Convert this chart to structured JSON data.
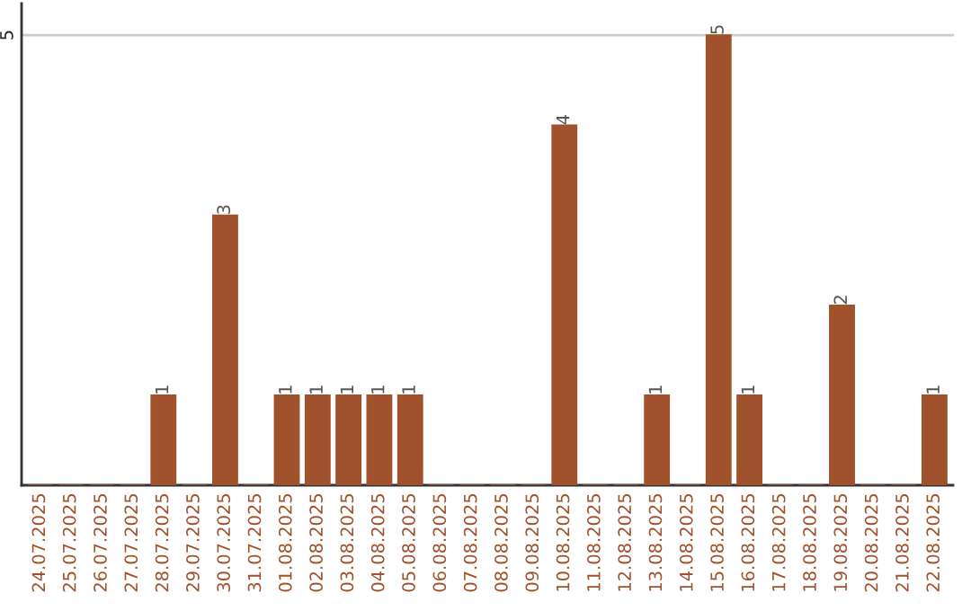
{
  "chart_data": {
    "type": "bar",
    "categories": [
      "24.07.2025",
      "25.07.2025",
      "26.07.2025",
      "27.07.2025",
      "28.07.2025",
      "29.07.2025",
      "30.07.2025",
      "31.07.2025",
      "01.08.2025",
      "02.08.2025",
      "03.08.2025",
      "04.08.2025",
      "05.08.2025",
      "06.08.2025",
      "07.08.2025",
      "08.08.2025",
      "09.08.2025",
      "10.08.2025",
      "11.08.2025",
      "12.08.2025",
      "13.08.2025",
      "14.08.2025",
      "15.08.2025",
      "16.08.2025",
      "17.08.2025",
      "18.08.2025",
      "19.08.2025",
      "20.08.2025",
      "21.08.2025",
      "22.08.2025"
    ],
    "values": [
      0,
      0,
      0,
      0,
      1,
      0,
      3,
      0,
      1,
      1,
      1,
      1,
      1,
      0,
      0,
      0,
      0,
      4,
      0,
      0,
      1,
      0,
      5,
      1,
      0,
      0,
      2,
      0,
      0,
      1
    ],
    "value_labels": [
      null,
      null,
      null,
      null,
      "1",
      null,
      "3",
      null,
      "1",
      "1",
      "1",
      "1",
      "1",
      null,
      null,
      null,
      null,
      "4",
      null,
      null,
      "1",
      null,
      "5",
      "1",
      null,
      null,
      "2",
      null,
      null,
      "1"
    ],
    "color": "#a0522d",
    "ylim": [
      0,
      5.35
    ],
    "yticks": [
      5
    ],
    "grid": "y"
  }
}
